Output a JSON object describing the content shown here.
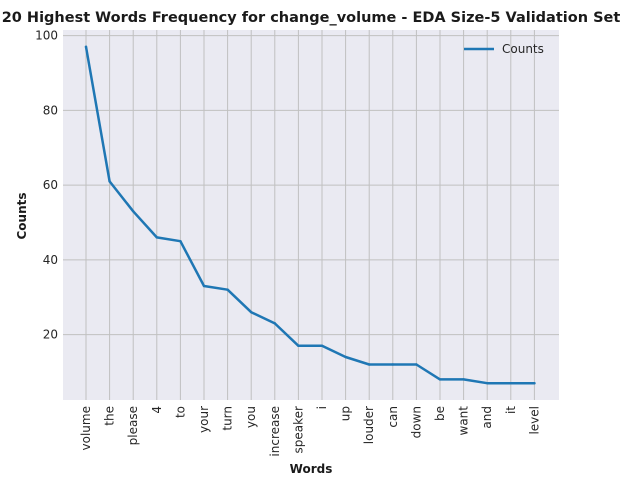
{
  "chart_data": {
    "type": "line",
    "title": "20 Highest Words Frequency for change_volume - EDA Size-5 Validation Set",
    "xlabel": "Words",
    "ylabel": "Counts",
    "categories": [
      "volume",
      "the",
      "please",
      "4",
      "to",
      "your",
      "turn",
      "you",
      "increase",
      "speaker",
      "i",
      "up",
      "louder",
      "can",
      "down",
      "be",
      "want",
      "and",
      "it",
      "level"
    ],
    "series": [
      {
        "name": "Counts",
        "color": "#1f77b4",
        "values": [
          97,
          61,
          53,
          46,
          45,
          33,
          32,
          26,
          23,
          17,
          17,
          14,
          12,
          12,
          12,
          8,
          8,
          7,
          7,
          7
        ]
      }
    ],
    "yticks": [
      20,
      40,
      60,
      80,
      100
    ],
    "ylim": [
      2.5,
      101.5
    ],
    "grid": true,
    "legend_position": "top-right",
    "colors": {
      "background": "#eaeaf2",
      "grid": "#c0c0c0"
    }
  }
}
